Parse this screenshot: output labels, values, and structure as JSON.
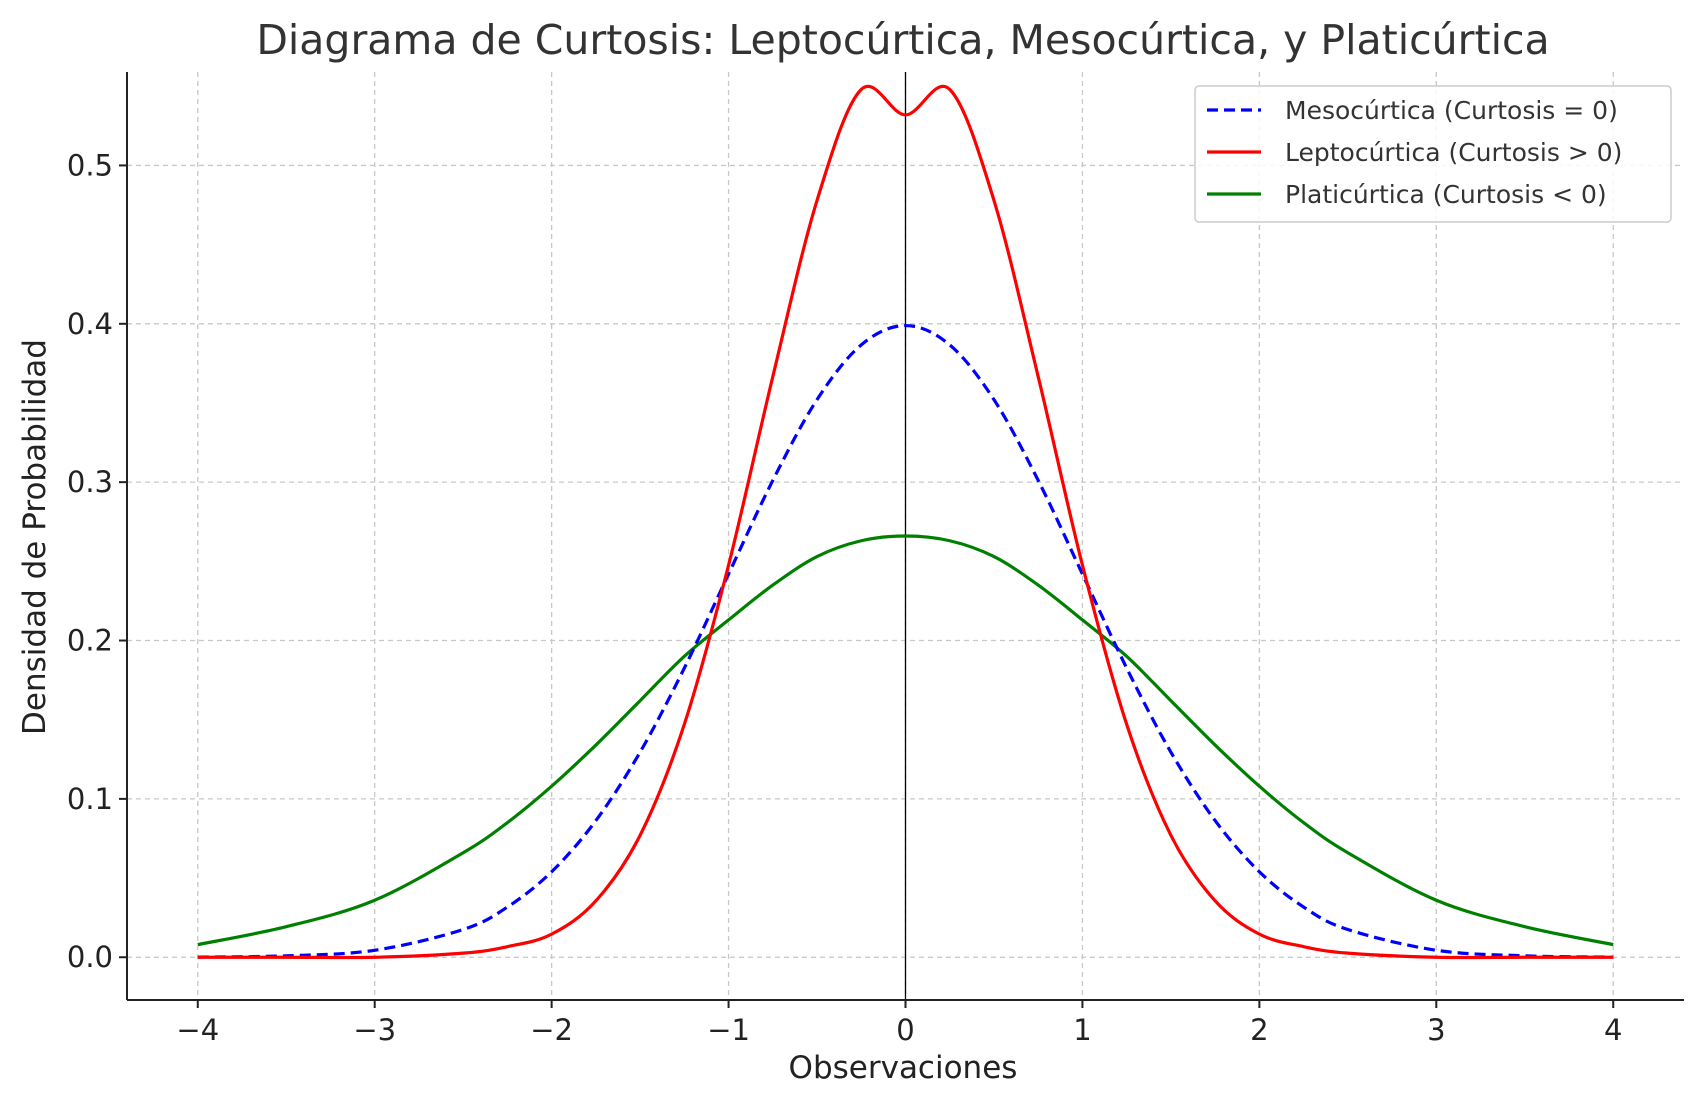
{
  "chart_data": {
    "type": "line",
    "title": "Diagrama de Curtosis: Leptocúrtica, Mesocúrtica, y Platicúrtica",
    "xlabel": "Observaciones",
    "ylabel": "Densidad de Probabilidad",
    "xlim": [
      -4.4,
      4.4
    ],
    "ylim": [
      -0.027,
      0.559
    ],
    "xticks": [
      -4,
      -3,
      -2,
      -1,
      0,
      1,
      2,
      3,
      4
    ],
    "xtick_labels": [
      "−4",
      "−3",
      "−2",
      "−1",
      "0",
      "1",
      "2",
      "3",
      "4"
    ],
    "yticks": [
      0.0,
      0.1,
      0.2,
      0.3,
      0.4,
      0.5
    ],
    "ytick_labels": [
      "0.0",
      "0.1",
      "0.2",
      "0.3",
      "0.4",
      "0.5"
    ],
    "grid": true,
    "legend_position": "top-right",
    "reference_line_x": 0,
    "x": [
      -4.0,
      -3.5,
      -3.0,
      -2.5,
      -2.25,
      -2.0,
      -1.75,
      -1.5,
      -1.25,
      -1.0,
      -0.75,
      -0.5,
      -0.25,
      0.0,
      0.25,
      0.5,
      0.75,
      1.0,
      1.25,
      1.5,
      1.75,
      2.0,
      2.25,
      2.5,
      3.0,
      3.5,
      4.0
    ],
    "series": [
      {
        "name": "Mesocúrtica (Curtosis = 0)",
        "color": "#0000ff",
        "dash": "dashed",
        "values": [
          0.0001,
          0.0009,
          0.0044,
          0.0175,
          0.0317,
          0.054,
          0.0863,
          0.1295,
          0.1826,
          0.242,
          0.3011,
          0.3521,
          0.3867,
          0.3989,
          0.3867,
          0.3521,
          0.3011,
          0.242,
          0.1826,
          0.1295,
          0.0863,
          0.054,
          0.0317,
          0.0175,
          0.0044,
          0.0009,
          0.0001
        ]
      },
      {
        "name": "Leptocúrtica (Curtosis > 0)",
        "color": "#ff0000",
        "dash": "solid",
        "values": [
          0.0,
          0.0,
          0.0,
          0.0026,
          0.0067,
          0.0146,
          0.0356,
          0.077,
          0.1471,
          0.2476,
          0.3666,
          0.4779,
          0.548,
          0.5319,
          0.548,
          0.4779,
          0.3666,
          0.2476,
          0.1471,
          0.077,
          0.0356,
          0.0146,
          0.0067,
          0.0026,
          0.0,
          0.0,
          0.0
        ]
      },
      {
        "name": "Platicúrtica (Curtosis < 0)",
        "color": "#008000",
        "dash": "solid",
        "values": [
          0.008,
          0.0193,
          0.036,
          0.066,
          0.085,
          0.108,
          0.134,
          0.162,
          0.19,
          0.213,
          0.235,
          0.253,
          0.263,
          0.266,
          0.263,
          0.253,
          0.235,
          0.213,
          0.19,
          0.162,
          0.134,
          0.108,
          0.085,
          0.066,
          0.036,
          0.0193,
          0.008
        ]
      }
    ]
  }
}
